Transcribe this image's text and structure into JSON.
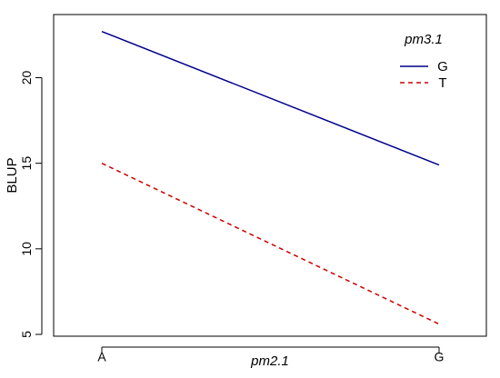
{
  "chart_data": {
    "type": "line",
    "xlabel": "pm2.1",
    "ylabel": "BLUP",
    "categories": [
      "A",
      "G"
    ],
    "ylim": [
      5,
      23
    ],
    "yticks": [
      5,
      10,
      15,
      20
    ],
    "legend": {
      "title": "pm3.1",
      "placement": "top-right"
    },
    "series": [
      {
        "name": "G",
        "values": [
          22.7,
          14.9
        ],
        "color": "#00008B",
        "linestyle": "solid"
      },
      {
        "name": "T",
        "values": [
          15.0,
          5.6
        ],
        "color": "#CD0000",
        "linestyle": "dashed"
      }
    ]
  }
}
